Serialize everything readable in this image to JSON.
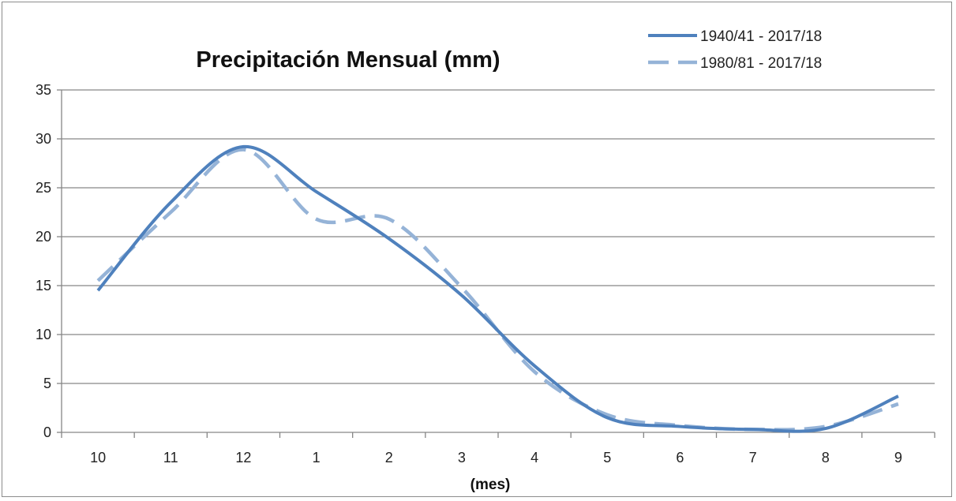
{
  "chart_data": {
    "type": "line",
    "title": "Precipitación Mensual (mm)",
    "xlabel": "(mes)",
    "ylabel": "",
    "categories": [
      "10",
      "11",
      "12",
      "1",
      "2",
      "3",
      "4",
      "5",
      "6",
      "7",
      "8",
      "9"
    ],
    "ylim": [
      0,
      35
    ],
    "yticks": [
      "0",
      "5",
      "10",
      "15",
      "20",
      "25",
      "30",
      "35"
    ],
    "grid": true,
    "legend_position": "top-right",
    "series": [
      {
        "name": "1940/41 - 2017/18",
        "values": [
          14.5,
          23.5,
          29.2,
          24.6,
          19.8,
          14.0,
          6.8,
          1.5,
          0.6,
          0.3,
          0.4,
          3.7
        ],
        "color": "#4f81bd",
        "style": "solid"
      },
      {
        "name": "1980/81 - 2017/18",
        "values": [
          15.5,
          22.5,
          28.9,
          21.8,
          21.8,
          14.8,
          6.2,
          1.8,
          0.7,
          0.3,
          0.6,
          2.9
        ],
        "color": "#95b3d7",
        "style": "dashed"
      }
    ]
  }
}
